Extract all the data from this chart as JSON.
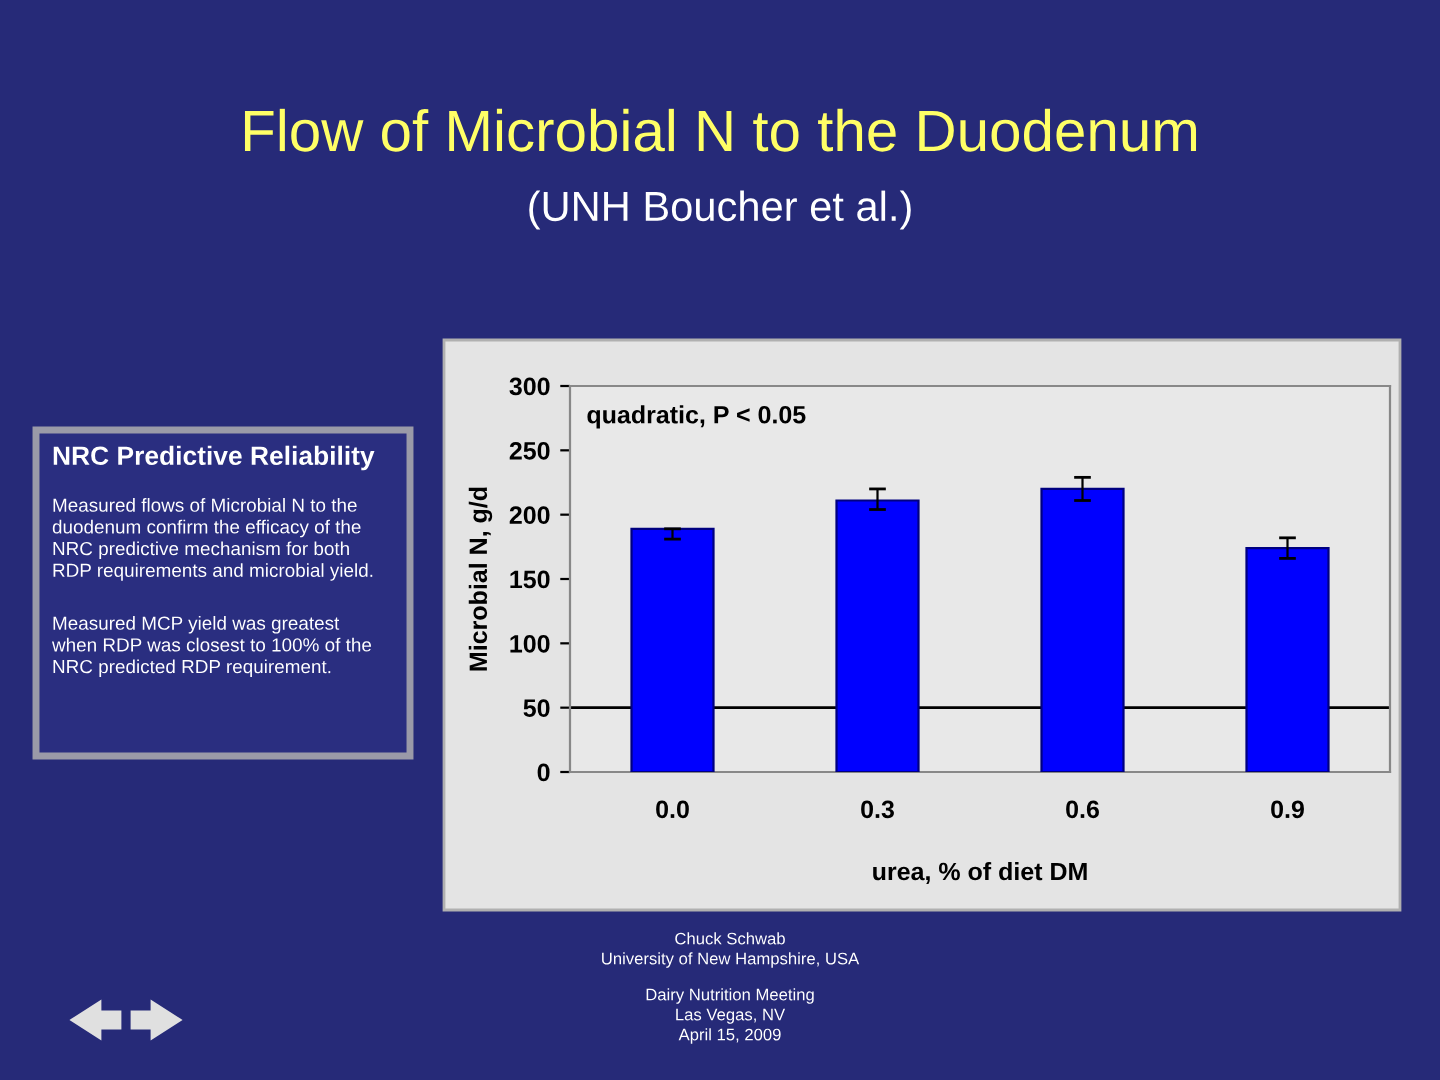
{
  "chart_data": {
    "type": "bar",
    "title": "Flow of Microbial N to the Duodenum",
    "subtitle": "(UNH Boucher et al.)",
    "xlabel": "urea, % of diet DM",
    "ylabel": "Microbial N, g/d",
    "categories": [
      "0.0",
      "0.3",
      "0.6",
      "0.9"
    ],
    "values": [
      189,
      211,
      220,
      174
    ],
    "errors": [
      [
        181,
        189
      ],
      [
        204,
        220
      ],
      [
        211,
        229
      ],
      [
        166,
        182
      ]
    ],
    "color": "#0000ff",
    "ylim": [
      0,
      300
    ],
    "yticks": [
      0,
      50,
      100,
      150,
      200,
      250,
      300
    ],
    "ref_lines": [
      {
        "axis": "y",
        "value": 50,
        "color": "#000000"
      }
    ],
    "annotations": [
      "quadratic, P < 0.05",
      "NRC Predictive Reliability",
      "Measured flows of Microbial N to the\nduodenum confirm the efficacy of the\nNRC predictive mechanism for both\nRDP requirements and microbial yield.",
      "Measured MCP yield was greatest\nwhen RDP was closest to 100% of the\nNRC predicted RDP requirement.",
      "Chuck Schwab",
      "University of New Hampshire, USA",
      "Dairy Nutrition Meeting",
      "Las Vegas, NV",
      "April 15, 2009"
    ]
  }
}
